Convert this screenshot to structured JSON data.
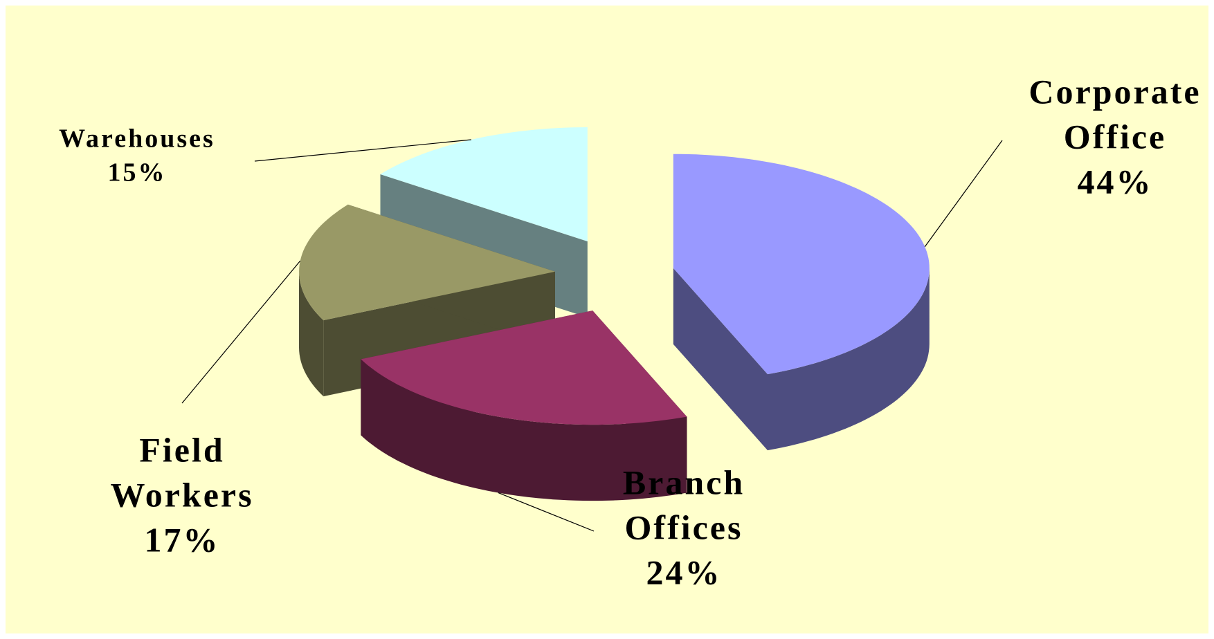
{
  "chart_data": {
    "type": "pie3d",
    "categories": [
      "Corporate Office",
      "Branch Offices",
      "Field Workers",
      "Warehouses"
    ],
    "values": [
      44,
      24,
      17,
      15
    ],
    "value_labels": [
      "44%",
      "24%",
      "17%",
      "15%"
    ],
    "colors": [
      "#9999ff",
      "#993366",
      "#999966",
      "#ccffff"
    ]
  }
}
